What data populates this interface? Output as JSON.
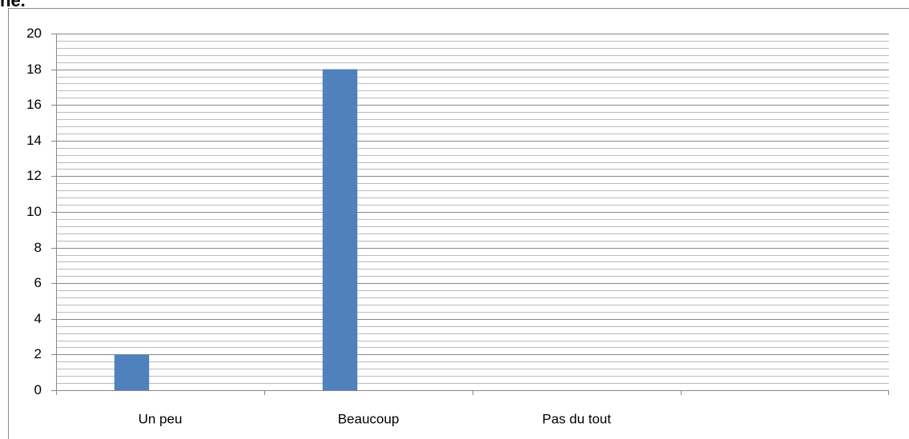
{
  "heading": "ne.",
  "chart_data": {
    "type": "bar",
    "categories": [
      "Un peu",
      "Beaucoup",
      "Pas du tout",
      null
    ],
    "values": [
      2,
      18,
      0,
      null
    ],
    "color": "#4f81bd",
    "ylim": [
      0,
      20
    ],
    "yticks": [
      0,
      2,
      4,
      6,
      8,
      10,
      12,
      14,
      16,
      18,
      20
    ],
    "grid": true,
    "minor_ystep": 0.4
  }
}
